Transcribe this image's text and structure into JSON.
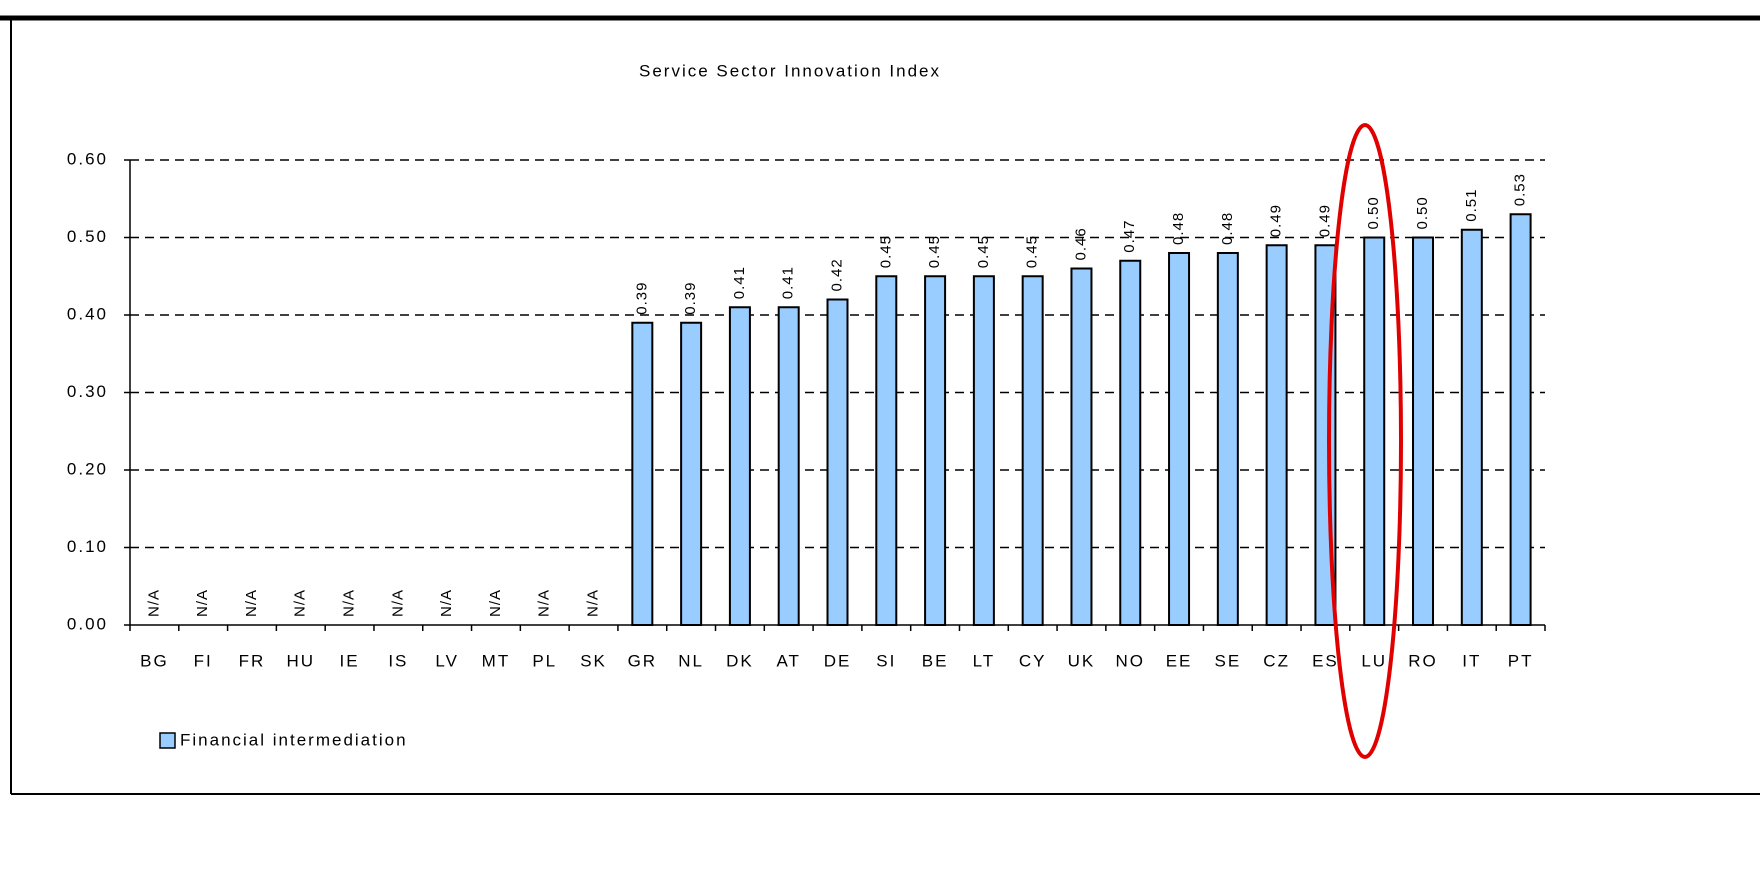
{
  "chart_data": {
    "type": "bar",
    "title": "Service Sector Innovation Index",
    "categories": [
      "BG",
      "FI",
      "FR",
      "HU",
      "IE",
      "IS",
      "LV",
      "MT",
      "PL",
      "SK",
      "GR",
      "NL",
      "DK",
      "AT",
      "DE",
      "SI",
      "BE",
      "LT",
      "CY",
      "UK",
      "NO",
      "EE",
      "SE",
      "CZ",
      "ES",
      "LU",
      "RO",
      "IT",
      "PT"
    ],
    "series": [
      {
        "name": "Financial intermediation",
        "color": "#99ccff",
        "values": [
          null,
          null,
          null,
          null,
          null,
          null,
          null,
          null,
          null,
          null,
          0.39,
          0.39,
          0.41,
          0.41,
          0.42,
          0.45,
          0.45,
          0.45,
          0.45,
          0.46,
          0.47,
          0.48,
          0.48,
          0.49,
          0.49,
          0.5,
          0.5,
          0.51,
          0.53
        ],
        "value_labels": [
          "N/A",
          "N/A",
          "N/A",
          "N/A",
          "N/A",
          "N/A",
          "N/A",
          "N/A",
          "N/A",
          "N/A",
          "0.39",
          "0.39",
          "0.41",
          "0.41",
          "0.42",
          "0.45",
          "0.45",
          "0.45",
          "0.45",
          "0.46",
          "0.47",
          "0.48",
          "0.48",
          "0.49",
          "0.49",
          "0.50",
          "0.50",
          "0.51",
          "0.53"
        ]
      }
    ],
    "ylim": [
      0,
      0.6
    ],
    "yticks": [
      {
        "value": 0,
        "label": "0.00"
      },
      {
        "value": 0.1,
        "label": "0.10"
      },
      {
        "value": 0.2,
        "label": "0.20"
      },
      {
        "value": 0.3,
        "label": "0.30"
      },
      {
        "value": 0.4,
        "label": "0.40"
      },
      {
        "value": 0.5,
        "label": "0.50"
      },
      {
        "value": 0.6,
        "label": "0.60"
      }
    ],
    "grid": true
  }
}
